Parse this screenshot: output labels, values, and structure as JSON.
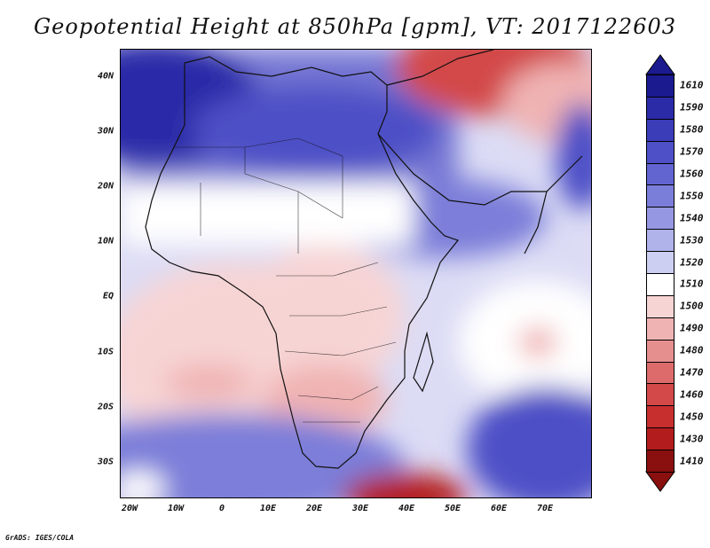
{
  "title": "Geopotential Height at 850hPa [gpm], VT: 2017122603",
  "credit": "GrADS: IGES/COLA",
  "map": {
    "projection": "latlon",
    "lon_range": [
      -25,
      80
    ],
    "lat_range": [
      -37,
      45
    ],
    "lat_labels": [
      "40N",
      "30N",
      "20N",
      "10N",
      "EQ",
      "10S",
      "20S",
      "30S"
    ],
    "lon_labels": [
      "20W",
      "10W",
      "0",
      "10E",
      "20E",
      "30E",
      "40E",
      "50E",
      "60E",
      "70E"
    ]
  },
  "colorbar": {
    "levels": [
      "1610",
      "1590",
      "1580",
      "1570",
      "1560",
      "1550",
      "1540",
      "1530",
      "1520",
      "1510",
      "1500",
      "1490",
      "1480",
      "1470",
      "1460",
      "1450",
      "1430",
      "1410"
    ],
    "colors": [
      "#1b1a8f",
      "#2b2ba8",
      "#3a3cb8",
      "#4d50c6",
      "#6264d0",
      "#7b7ed9",
      "#9597e2",
      "#b0b2ea",
      "#cdcff2",
      "#ffffff",
      "#f7d4d4",
      "#f0b3b3",
      "#e68f8f",
      "#dd6b6b",
      "#d34949",
      "#c72f2f",
      "#b31c1c",
      "#8a0f0f"
    ]
  }
}
